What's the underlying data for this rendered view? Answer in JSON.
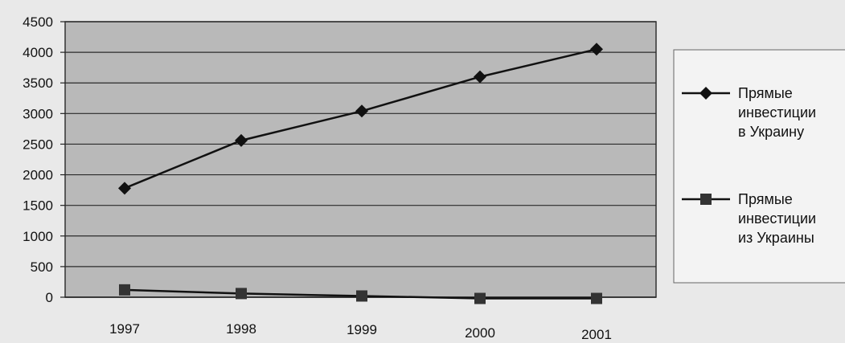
{
  "chart_data": {
    "type": "line",
    "categories": [
      "1997",
      "1998",
      "1999",
      "2000",
      "2001"
    ],
    "y_ticks": [
      "0",
      "500",
      "1000",
      "1500",
      "2000",
      "2500",
      "3000",
      "3500",
      "4000",
      "4500"
    ],
    "ylim": [
      0,
      4500
    ],
    "grid": true,
    "legend_position": "right",
    "series": [
      {
        "name_lines": [
          "Прямые",
          "инвестиции",
          "в Украину"
        ],
        "marker": "diamond",
        "values": [
          1780,
          2560,
          3040,
          3600,
          4050
        ]
      },
      {
        "name_lines": [
          "Прямые",
          "инвестиции",
          "из Украины"
        ],
        "marker": "square",
        "values": [
          120,
          60,
          20,
          -20,
          -20
        ]
      }
    ]
  }
}
